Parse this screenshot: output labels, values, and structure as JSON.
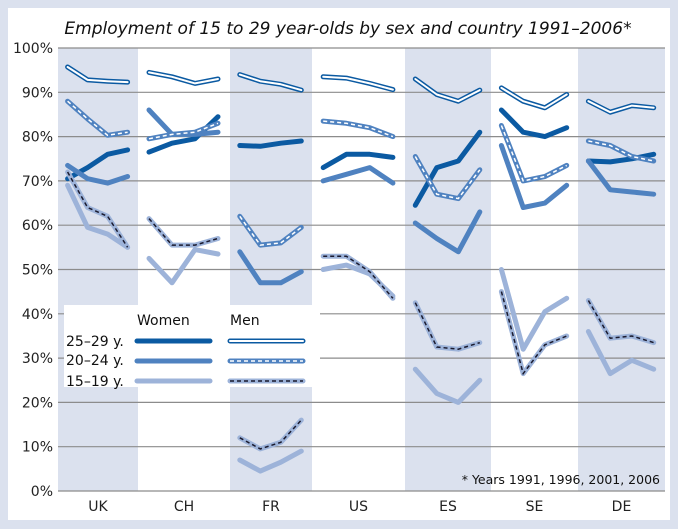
{
  "chart_data": {
    "type": "line",
    "title": "Employment of 15 to 29 year-olds by sex and country 1991–2006*",
    "xlabel": "",
    "ylabel": "",
    "ylim": [
      0,
      100
    ],
    "yticks": [
      "0%",
      "10%",
      "20%",
      "30%",
      "40%",
      "50%",
      "60%",
      "70%",
      "80%",
      "90%",
      "100%"
    ],
    "grid": true,
    "years": [
      1991,
      1996,
      2001,
      2006
    ],
    "categories": [
      "UK",
      "CH",
      "FR",
      "US",
      "ES",
      "SE",
      "DE"
    ],
    "footnote": "* Years 1991, 1996, 2001, 2006",
    "legend": {
      "placement": "lower-left",
      "headers": [
        "Women",
        "Men"
      ],
      "rows": [
        "25–29 y.",
        "20–24 y.",
        "15–19 y."
      ]
    },
    "colors": {
      "age25_29": "#0b5aa2",
      "age20_24": "#4f82c0",
      "age15_19": "#9db3d9",
      "band": "#dbe1ee",
      "grid": "#8c8c8c"
    },
    "series": [
      {
        "name": "Women 25–29 y.",
        "sex": "Women",
        "age": "25–29 y.",
        "values": {
          "UK": [
            70.5,
            73,
            76,
            77
          ],
          "CH": [
            76.5,
            78.5,
            79.5,
            84.5
          ],
          "FR": [
            78,
            77.8,
            78.5,
            79
          ],
          "US": [
            73,
            76,
            76,
            75.3
          ],
          "ES": [
            64.5,
            73,
            74.5,
            81
          ],
          "SE": [
            86,
            81,
            80,
            82
          ],
          "DE": [
            74.5,
            74.3,
            75,
            76
          ]
        }
      },
      {
        "name": "Women 20–24 y.",
        "sex": "Women",
        "age": "20–24 y.",
        "values": {
          "UK": [
            73.5,
            70.5,
            69.5,
            71
          ],
          "CH": [
            86,
            80.5,
            80.5,
            81
          ],
          "FR": [
            54,
            47,
            47,
            49.5
          ],
          "US": [
            70,
            71.5,
            73,
            69.5
          ],
          "ES": [
            60.5,
            57,
            54,
            63
          ],
          "SE": [
            78,
            64,
            65,
            69
          ],
          "DE": [
            74.5,
            68,
            67.5,
            67
          ]
        }
      },
      {
        "name": "Women 15–19 y.",
        "sex": "Women",
        "age": "15–19 y.",
        "values": {
          "UK": [
            69,
            59.5,
            58,
            55
          ],
          "CH": [
            52.5,
            47,
            54.5,
            53.5
          ],
          "FR": [
            7,
            4.5,
            6.5,
            9
          ],
          "US": [
            50,
            51,
            49,
            44
          ],
          "ES": [
            27.5,
            22,
            20,
            25
          ],
          "SE": [
            50,
            32,
            40.5,
            43.5
          ],
          "DE": [
            36,
            26.5,
            29.5,
            27.5
          ]
        }
      },
      {
        "name": "Men 25–29 y.",
        "sex": "Men",
        "age": "25–29 y.",
        "values": {
          "UK": [
            95.7,
            92.8,
            92.5,
            92.3
          ],
          "CH": [
            94.5,
            93.5,
            92,
            93
          ],
          "FR": [
            94,
            92.5,
            91.8,
            90.5
          ],
          "US": [
            93.5,
            93.2,
            92,
            90.6
          ],
          "ES": [
            93,
            89.5,
            88,
            90.5
          ],
          "SE": [
            91,
            88,
            86.5,
            89.5
          ],
          "DE": [
            88,
            85.5,
            87,
            86.5
          ]
        }
      },
      {
        "name": "Men 20–24 y.",
        "sex": "Men",
        "age": "20–24 y.",
        "values": {
          "UK": [
            88,
            84,
            80.3,
            81
          ],
          "CH": [
            79.5,
            80.5,
            81,
            83
          ],
          "FR": [
            62,
            55.5,
            56,
            59.5
          ],
          "US": [
            83.5,
            83,
            82,
            80
          ],
          "ES": [
            75.5,
            67,
            66,
            72.5
          ],
          "SE": [
            82.5,
            70,
            71,
            73.5
          ],
          "DE": [
            79,
            78,
            75.5,
            74.5
          ]
        }
      },
      {
        "name": "Men 15–19 y.",
        "sex": "Men",
        "age": "15–19 y.",
        "values": {
          "UK": [
            72,
            64,
            62,
            55
          ],
          "CH": [
            61.5,
            55.5,
            55.5,
            57
          ],
          "FR": [
            12,
            9.5,
            11,
            16
          ],
          "US": [
            53,
            53,
            49.5,
            43.5
          ],
          "ES": [
            42.5,
            32.5,
            32,
            33.5
          ],
          "SE": [
            45,
            26.5,
            33,
            35
          ],
          "DE": [
            43,
            34.5,
            35,
            33.5
          ]
        }
      }
    ]
  }
}
